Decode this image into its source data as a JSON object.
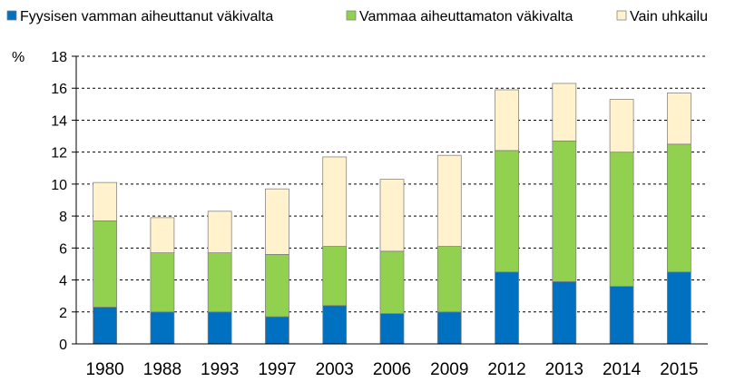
{
  "chart_data": {
    "type": "bar",
    "stacked": true,
    "categories": [
      "1980",
      "1988",
      "1993",
      "1997",
      "2003",
      "2006",
      "2009",
      "2012",
      "2013",
      "2014",
      "2015"
    ],
    "series": [
      {
        "name": "Fyysisen vamman aiheuttanut väkivalta",
        "color": "#0070c0",
        "values": [
          2.3,
          2.0,
          2.0,
          1.7,
          2.4,
          1.9,
          2.0,
          4.5,
          3.9,
          3.6,
          4.5
        ]
      },
      {
        "name": "Vammaa aiheuttamaton väkivalta",
        "color": "#92d050",
        "values": [
          5.4,
          3.7,
          3.7,
          3.9,
          3.7,
          3.9,
          4.1,
          7.6,
          8.8,
          8.4,
          8.0
        ]
      },
      {
        "name": "Vain uhkailu",
        "color": "#fff2cc",
        "values": [
          2.4,
          2.2,
          2.6,
          4.1,
          5.6,
          4.5,
          5.7,
          3.8,
          3.6,
          3.3,
          3.2
        ]
      }
    ],
    "title": "",
    "xlabel": "",
    "ylabel": "%",
    "ylim": [
      0,
      18
    ],
    "yticks": [
      0,
      2,
      4,
      6,
      8,
      10,
      12,
      14,
      16,
      18
    ],
    "grid": "horizontal-dashed",
    "legend": "top"
  }
}
